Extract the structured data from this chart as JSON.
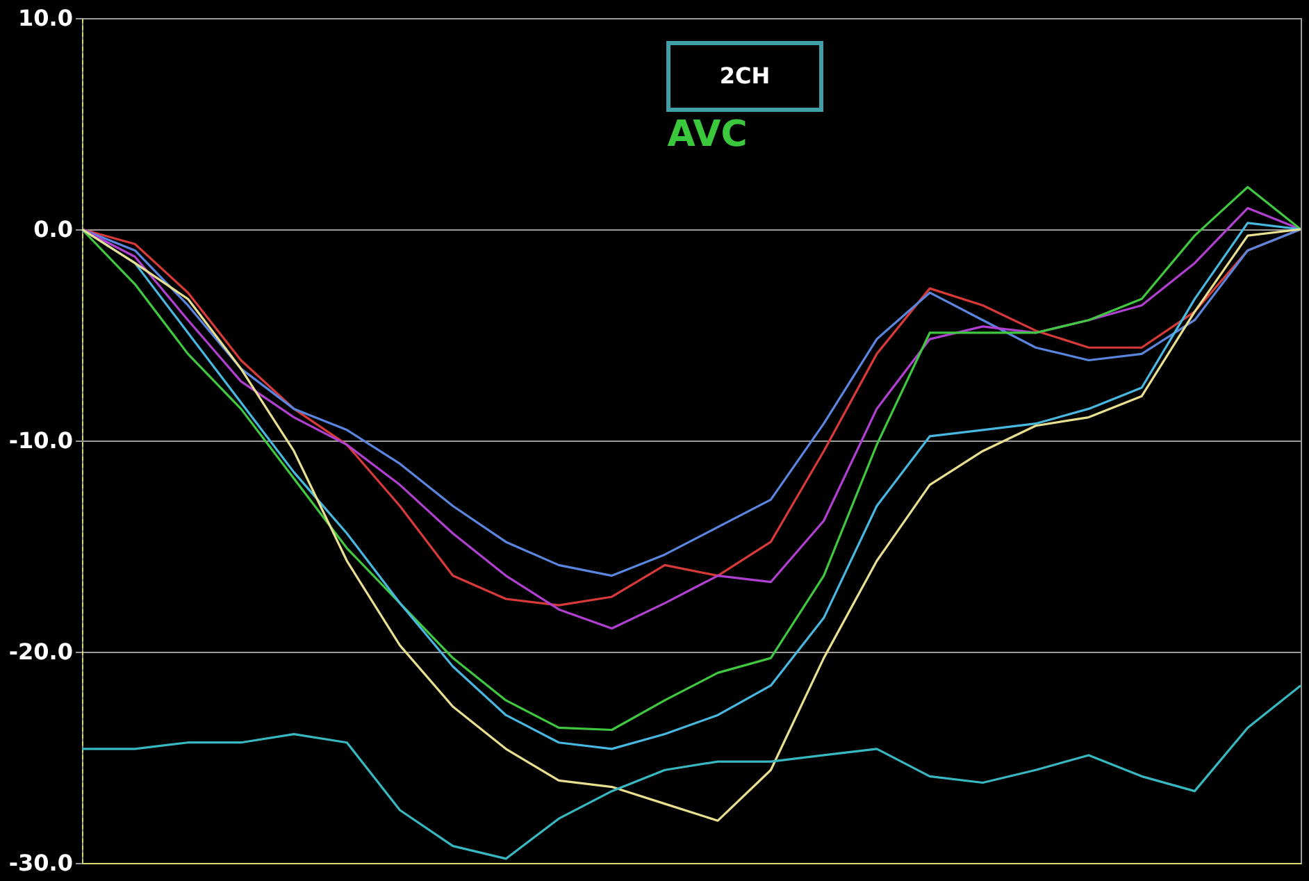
{
  "chart_data": {
    "type": "line",
    "categories": [
      null,
      null,
      null,
      null,
      null,
      null,
      null,
      null,
      null,
      null,
      null,
      null,
      null,
      null,
      null,
      null,
      null,
      null,
      null,
      null,
      null,
      null,
      null,
      null
    ],
    "series": [
      {
        "color": "#d83a3a",
        "values": [
          0,
          -0.7,
          -3,
          -6.2,
          -8.5,
          -10.2,
          -13.1,
          -16.4,
          -17.5,
          -17.8,
          -17.4,
          -15.9,
          -16.4,
          -14.8,
          -10.5,
          -5.9,
          -2.8,
          -3.6,
          -4.8,
          -5.6,
          -5.6,
          -3.9,
          -1,
          0
        ]
      },
      {
        "color": "#5b86e0",
        "values": [
          0,
          -1,
          -3.6,
          -6.6,
          -8.5,
          -9.5,
          -11.1,
          -13.1,
          -14.8,
          -15.9,
          -16.4,
          -15.4,
          -14.1,
          -12.8,
          -9.2,
          -5.2,
          -3,
          -4.3,
          -5.6,
          -6.2,
          -5.9,
          -4.3,
          -1,
          0
        ]
      },
      {
        "color": "#b040d0",
        "values": [
          0,
          -1.3,
          -4.3,
          -7.2,
          -8.9,
          -10.2,
          -12.1,
          -14.4,
          -16.4,
          -18,
          -18.9,
          -17.7,
          -16.4,
          -16.7,
          -13.8,
          -8.5,
          -5.2,
          -4.6,
          -4.9,
          -4.3,
          -3.6,
          -1.6,
          1,
          0
        ]
      },
      {
        "color": "#40c840",
        "values": [
          0,
          -2.6,
          -5.9,
          -8.5,
          -11.8,
          -15.1,
          -17.7,
          -20.3,
          -22.3,
          -23.6,
          -23.7,
          -22.3,
          -21,
          -20.3,
          -16.4,
          -10.2,
          -4.9,
          -4.9,
          -4.9,
          -4.3,
          -3.3,
          -0.3,
          2,
          0
        ]
      },
      {
        "color": "#48b8e0",
        "values": [
          0,
          -1.6,
          -4.9,
          -8.2,
          -11.5,
          -14.4,
          -17.7,
          -20.7,
          -23,
          -24.3,
          -24.6,
          -23.9,
          -23,
          -21.6,
          -18.4,
          -13.1,
          -9.8,
          -9.5,
          -9.2,
          -8.5,
          -7.5,
          -3.3,
          0.3,
          0
        ]
      },
      {
        "color": "#e8e090",
        "values": [
          0,
          -1.6,
          -3.3,
          -6.6,
          -10.5,
          -15.7,
          -19.7,
          -22.6,
          -24.6,
          -26.1,
          -26.4,
          -27.2,
          -28,
          -25.6,
          -20.3,
          -15.7,
          -12.1,
          -10.5,
          -9.3,
          -8.9,
          -7.9,
          -3.9,
          -0.3,
          0
        ]
      },
      {
        "color": "#38b8c0",
        "values": [
          -24.6,
          -24.6,
          -24.3,
          -24.3,
          -23.9,
          -24.3,
          -27.5,
          -29.2,
          -29.8,
          -27.9,
          -26.6,
          -25.6,
          -25.2,
          -25.2,
          -24.9,
          -24.6,
          -25.9,
          -26.2,
          -25.6,
          -24.9,
          -25.9,
          -26.6,
          -23.6,
          -21.6
        ]
      }
    ],
    "ylim": [
      -30,
      10
    ],
    "yticks": [
      {
        "value": -30,
        "label": "-30.0"
      },
      {
        "value": -20,
        "label": "-20.0"
      },
      {
        "value": -10,
        "label": "-10.0"
      },
      {
        "value": 0,
        "label": "0.0"
      },
      {
        "value": 10,
        "label": "10.0"
      }
    ],
    "grid": "y",
    "tick_labels": "y",
    "line_style": "solid",
    "annotations": [
      "2CH",
      "AVC"
    ]
  }
}
